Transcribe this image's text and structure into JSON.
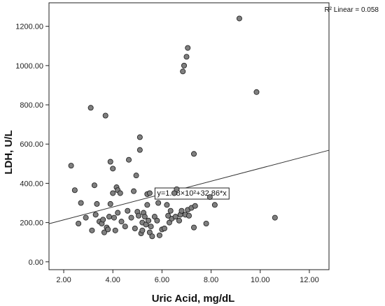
{
  "chart_data": {
    "type": "scatter",
    "title": "",
    "xlabel": "Uric Acid, mg/dL",
    "ylabel": "LDH, U/L",
    "xlim": [
      1.4,
      12.8
    ],
    "ylim": [
      -40,
      1320
    ],
    "x_ticks": [
      2.0,
      4.0,
      6.0,
      8.0,
      10.0,
      12.0
    ],
    "x_tick_labels": [
      "2.00",
      "4.00",
      "6.00",
      "8.00",
      "10.00",
      "12.00"
    ],
    "y_ticks": [
      0,
      200,
      400,
      600,
      800,
      1000,
      1200
    ],
    "y_tick_labels": [
      "0.00",
      "200.00",
      "400.00",
      "600.00",
      "800.00",
      "1000.00",
      "1200.00"
    ],
    "grid": false,
    "legend_text": "R² Linear = 0.058",
    "fit_line": {
      "intercept": 148,
      "slope": 32.86,
      "x_range": [
        1.4,
        12.8
      ]
    },
    "fit_equation_label": "y=1.48×10²+32.86*x",
    "fit_label_anchor": {
      "x": 5.8,
      "y": 380
    },
    "point_color": "#7f7f7f",
    "points": [
      [
        2.3,
        490
      ],
      [
        2.45,
        365
      ],
      [
        2.6,
        195
      ],
      [
        2.7,
        300
      ],
      [
        2.9,
        225
      ],
      [
        3.1,
        785
      ],
      [
        3.15,
        160
      ],
      [
        3.25,
        390
      ],
      [
        3.3,
        240
      ],
      [
        3.35,
        295
      ],
      [
        3.45,
        205
      ],
      [
        3.55,
        195
      ],
      [
        3.6,
        215
      ],
      [
        3.65,
        150
      ],
      [
        3.7,
        745
      ],
      [
        3.75,
        175
      ],
      [
        3.8,
        165
      ],
      [
        3.85,
        230
      ],
      [
        3.9,
        510
      ],
      [
        3.9,
        295
      ],
      [
        4.0,
        475
      ],
      [
        4.0,
        350
      ],
      [
        4.05,
        225
      ],
      [
        4.1,
        160
      ],
      [
        4.15,
        380
      ],
      [
        4.2,
        365
      ],
      [
        4.2,
        250
      ],
      [
        4.3,
        350
      ],
      [
        4.35,
        205
      ],
      [
        4.5,
        180
      ],
      [
        4.65,
        520
      ],
      [
        4.75,
        225
      ],
      [
        4.85,
        360
      ],
      [
        4.9,
        170
      ],
      [
        4.95,
        440
      ],
      [
        5.0,
        255
      ],
      [
        5.05,
        235
      ],
      [
        5.1,
        635
      ],
      [
        5.1,
        570
      ],
      [
        5.15,
        145
      ],
      [
        5.2,
        200
      ],
      [
        5.2,
        160
      ],
      [
        5.25,
        250
      ],
      [
        5.3,
        230
      ],
      [
        5.35,
        190
      ],
      [
        5.4,
        345
      ],
      [
        5.4,
        290
      ],
      [
        5.45,
        210
      ],
      [
        5.5,
        350
      ],
      [
        5.5,
        150
      ],
      [
        5.55,
        180
      ],
      [
        5.6,
        130
      ],
      [
        5.7,
        230
      ],
      [
        5.8,
        210
      ],
      [
        5.85,
        300
      ],
      [
        5.9,
        135
      ],
      [
        6.0,
        165
      ],
      [
        6.1,
        170
      ],
      [
        6.2,
        290
      ],
      [
        6.3,
        200
      ],
      [
        6.35,
        260
      ],
      [
        6.4,
        220
      ],
      [
        6.5,
        350
      ],
      [
        6.55,
        230
      ],
      [
        6.6,
        370
      ],
      [
        6.7,
        210
      ],
      [
        6.75,
        240
      ],
      [
        6.8,
        260
      ],
      [
        6.85,
        970
      ],
      [
        6.9,
        1000
      ],
      [
        6.95,
        240
      ],
      [
        7.0,
        1045
      ],
      [
        7.05,
        1090
      ],
      [
        7.05,
        265
      ],
      [
        7.1,
        235
      ],
      [
        7.2,
        275
      ],
      [
        7.3,
        550
      ],
      [
        7.3,
        175
      ],
      [
        7.35,
        285
      ],
      [
        7.8,
        195
      ],
      [
        7.95,
        330
      ],
      [
        8.15,
        290
      ],
      [
        9.15,
        1240
      ],
      [
        9.85,
        865
      ],
      [
        10.6,
        225
      ],
      [
        6.25,
        235
      ],
      [
        4.6,
        260
      ]
    ]
  }
}
